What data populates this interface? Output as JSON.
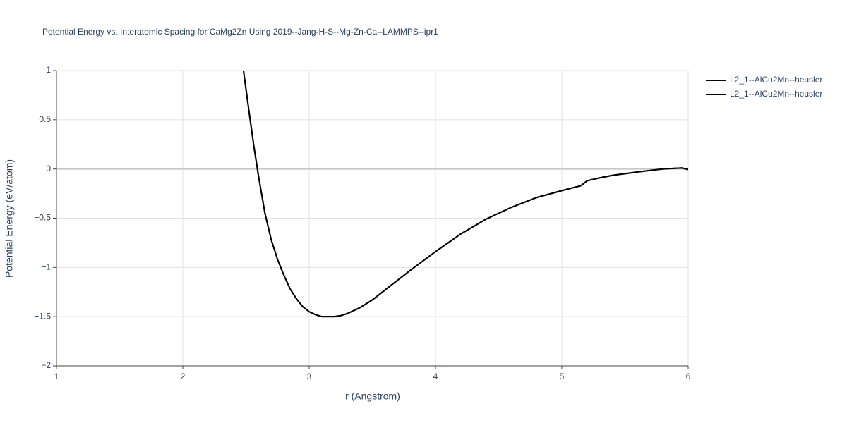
{
  "chart_data": {
    "type": "line",
    "title": "Potential Energy vs. Interatomic Spacing for CaMg2Zn Using 2019--Jang-H-S--Mg-Zn-Ca--LAMMPS--ipr1",
    "x_label": "r (Angstrom)",
    "y_label": "Potential Energy (eV/atom)",
    "x": [
      2.48,
      2.52,
      2.56,
      2.6,
      2.65,
      2.7,
      2.75,
      2.8,
      2.85,
      2.9,
      2.95,
      3.0,
      3.05,
      3.1,
      3.15,
      3.2,
      3.25,
      3.3,
      3.4,
      3.5,
      3.6,
      3.8,
      4.0,
      4.2,
      4.4,
      4.6,
      4.8,
      5.0,
      5.15,
      5.2,
      5.3,
      5.4,
      5.6,
      5.8,
      5.95,
      6.0
    ],
    "series": [
      {
        "name": "L2_1--AlCu2Mn--heusler",
        "color": "#000000",
        "values": [
          1.0,
          0.62,
          0.25,
          -0.08,
          -0.45,
          -0.72,
          -0.92,
          -1.08,
          -1.22,
          -1.32,
          -1.4,
          -1.45,
          -1.48,
          -1.5,
          -1.5,
          -1.5,
          -1.49,
          -1.47,
          -1.41,
          -1.33,
          -1.23,
          -1.03,
          -0.84,
          -0.66,
          -0.51,
          -0.39,
          -0.29,
          -0.22,
          -0.17,
          -0.12,
          -0.09,
          -0.065,
          -0.03,
          0.0,
          0.01,
          -0.005
        ]
      },
      {
        "name": "L2_1--AlCu2Mn--heusler",
        "color": "#000000",
        "values": [
          1.0,
          0.62,
          0.25,
          -0.08,
          -0.45,
          -0.72,
          -0.92,
          -1.08,
          -1.22,
          -1.32,
          -1.4,
          -1.45,
          -1.48,
          -1.5,
          -1.5,
          -1.5,
          -1.49,
          -1.47,
          -1.41,
          -1.33,
          -1.23,
          -1.03,
          -0.84,
          -0.66,
          -0.51,
          -0.39,
          -0.29,
          -0.22,
          -0.17,
          -0.12,
          -0.09,
          -0.065,
          -0.03,
          0.0,
          0.01,
          -0.005
        ]
      }
    ],
    "xlim": [
      1,
      6
    ],
    "xticks": [
      1,
      2,
      3,
      4,
      5,
      6
    ],
    "ylim": [
      -2,
      1
    ],
    "yticks": [
      {
        "value": -2,
        "label": "−2"
      },
      {
        "value": -1.5,
        "label": "−1.5"
      },
      {
        "value": -1,
        "label": "−1"
      },
      {
        "value": -0.5,
        "label": "−0.5"
      },
      0,
      0.5,
      1
    ],
    "grid": true,
    "legend": "top-right"
  }
}
